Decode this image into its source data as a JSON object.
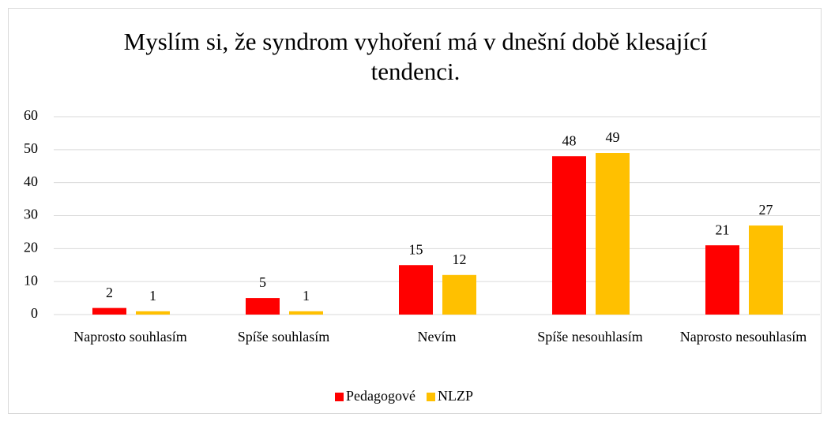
{
  "chart_data": {
    "type": "bar",
    "title": "Myslím si, že syndrom vyhoření má v dnešní době klesající tendenci.",
    "categories": [
      "Naprosto souhlasím",
      "Spíše souhlasím",
      "Nevím",
      "Spíše nesouhlasím",
      "Naprosto nesouhlasím"
    ],
    "series": [
      {
        "name": "Pedagogové",
        "color": "#ff0000",
        "values": [
          2,
          5,
          15,
          48,
          21
        ]
      },
      {
        "name": "NLZP",
        "color": "#ffc000",
        "values": [
          1,
          1,
          12,
          49,
          27
        ]
      }
    ],
    "ylim": [
      0,
      60
    ],
    "yticks": [
      0,
      10,
      20,
      30,
      40,
      50,
      60
    ],
    "grid": true,
    "legend": "bottom"
  }
}
